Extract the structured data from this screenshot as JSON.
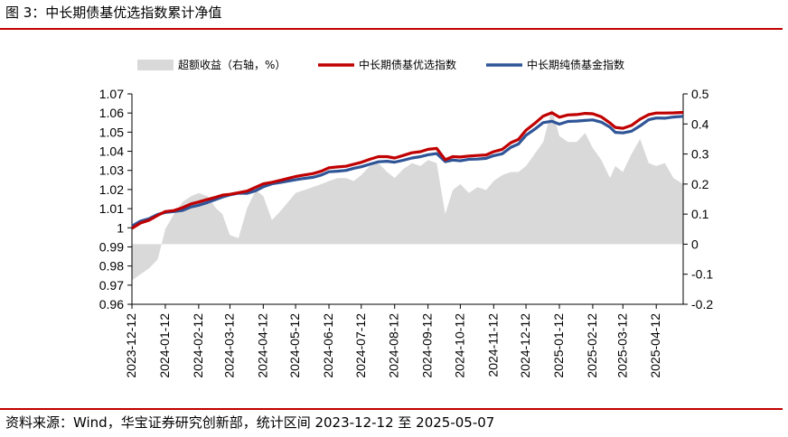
{
  "header": {
    "title": "图 3：中长期债基优选指数累计净值"
  },
  "footer": {
    "source": "资料来源：Wind，华宝证券研究创新部，统计区间 2023-12-12 至 2025-05-07"
  },
  "colors": {
    "accent_rule": "#c00000",
    "area": "#d9d9d9",
    "series1": "#c00000",
    "series2": "#2f5597",
    "series2_edge": "#5b9bd5"
  },
  "chart_data": {
    "type": "line",
    "title": "",
    "legend": [
      "超额收益（右轴，%）",
      "中长期债基优选指数",
      "中长期纯债基金指数"
    ],
    "legend_position": "top",
    "grid": false,
    "x_tick_labels": [
      "2023-12-12",
      "2024-01-12",
      "2024-02-12",
      "2024-03-12",
      "2024-04-12",
      "2024-05-12",
      "2024-06-12",
      "2024-07-12",
      "2024-08-12",
      "2024-09-12",
      "2024-10-12",
      "2024-11-12",
      "2024-12-12",
      "2025-01-12",
      "2025-02-12",
      "2025-03-12",
      "2025-04-12"
    ],
    "x_range": [
      "2023-12-12",
      "2025-05-07"
    ],
    "ylim_left": [
      0.96,
      1.07
    ],
    "yticks_left": [
      "0.96",
      "0.97",
      "0.98",
      "0.99",
      "1",
      "1.01",
      "1.02",
      "1.03",
      "1.04",
      "1.05",
      "1.06",
      "1.07"
    ],
    "ylim_right": [
      -0.2,
      0.5
    ],
    "yticks_right": [
      "-0.2",
      "-0.1",
      "0",
      "0.1",
      "0.2",
      "0.3",
      "0.4",
      "0.5"
    ],
    "x": [
      "2023-12-12",
      "2023-12-20",
      "2023-12-28",
      "2024-01-05",
      "2024-01-12",
      "2024-01-20",
      "2024-01-28",
      "2024-02-05",
      "2024-02-12",
      "2024-02-20",
      "2024-02-28",
      "2024-03-05",
      "2024-03-12",
      "2024-03-20",
      "2024-03-28",
      "2024-04-05",
      "2024-04-12",
      "2024-04-20",
      "2024-04-28",
      "2024-05-05",
      "2024-05-12",
      "2024-05-20",
      "2024-05-28",
      "2024-06-05",
      "2024-06-12",
      "2024-06-20",
      "2024-06-28",
      "2024-07-05",
      "2024-07-12",
      "2024-07-20",
      "2024-07-28",
      "2024-08-05",
      "2024-08-12",
      "2024-08-20",
      "2024-08-28",
      "2024-09-05",
      "2024-09-12",
      "2024-09-20",
      "2024-09-28",
      "2024-10-05",
      "2024-10-12",
      "2024-10-20",
      "2024-10-28",
      "2024-11-05",
      "2024-11-12",
      "2024-11-20",
      "2024-11-28",
      "2024-12-05",
      "2024-12-12",
      "2024-12-20",
      "2024-12-28",
      "2025-01-05",
      "2025-01-12",
      "2025-01-20",
      "2025-01-28",
      "2025-02-05",
      "2025-02-12",
      "2025-02-20",
      "2025-02-28",
      "2025-03-05",
      "2025-03-12",
      "2025-03-20",
      "2025-03-28",
      "2025-04-05",
      "2025-04-12",
      "2025-04-20",
      "2025-04-28",
      "2025-05-07"
    ],
    "series": [
      {
        "name": "超额收益（右轴，%）",
        "type": "area",
        "axis": "right",
        "values": [
          -0.12,
          -0.1,
          -0.08,
          -0.05,
          0.05,
          0.1,
          0.14,
          0.16,
          0.17,
          0.16,
          0.12,
          0.1,
          0.03,
          0.02,
          0.12,
          0.18,
          0.16,
          0.08,
          0.11,
          0.14,
          0.17,
          0.18,
          0.19,
          0.2,
          0.21,
          0.22,
          0.22,
          0.21,
          0.23,
          0.26,
          0.27,
          0.24,
          0.22,
          0.25,
          0.27,
          0.26,
          0.28,
          0.27,
          0.1,
          0.18,
          0.2,
          0.17,
          0.19,
          0.18,
          0.21,
          0.23,
          0.24,
          0.24,
          0.26,
          0.3,
          0.34,
          0.45,
          0.36,
          0.34,
          0.34,
          0.37,
          0.32,
          0.28,
          0.22,
          0.26,
          0.24,
          0.3,
          0.35,
          0.27,
          0.26,
          0.27,
          0.22,
          0.2
        ]
      },
      {
        "name": "中长期债基优选指数",
        "type": "line",
        "axis": "left",
        "values": [
          0.9997,
          1.0025,
          1.004,
          1.0065,
          1.0085,
          1.009,
          1.0105,
          1.0125,
          1.0135,
          1.0148,
          1.016,
          1.0171,
          1.0175,
          1.0183,
          1.0192,
          1.0212,
          1.023,
          1.0238,
          1.0248,
          1.0258,
          1.0268,
          1.0276,
          1.0283,
          1.0296,
          1.0314,
          1.0318,
          1.0322,
          1.0332,
          1.0342,
          1.0358,
          1.0372,
          1.0372,
          1.0365,
          1.0378,
          1.0392,
          1.0398,
          1.041,
          1.0415,
          1.0356,
          1.0372,
          1.037,
          1.0375,
          1.0378,
          1.0381,
          1.0398,
          1.041,
          1.0445,
          1.0462,
          1.051,
          1.0545,
          1.0584,
          1.0602,
          1.0578,
          1.059,
          1.0592,
          1.0598,
          1.0596,
          1.058,
          1.0548,
          1.0525,
          1.052,
          1.0535,
          1.0568,
          1.0592,
          1.06,
          1.06,
          1.0601,
          1.0603
        ]
      },
      {
        "name": "中长期纯债基金指数",
        "type": "line",
        "axis": "left",
        "values": [
          1.0009,
          1.0035,
          1.0048,
          1.007,
          1.008,
          1.0085,
          1.0091,
          1.0109,
          1.0118,
          1.0132,
          1.0148,
          1.0161,
          1.0172,
          1.0181,
          1.018,
          1.0194,
          1.0214,
          1.023,
          1.0237,
          1.0244,
          1.0251,
          1.0258,
          1.0264,
          1.0276,
          1.0293,
          1.0296,
          1.03,
          1.0311,
          1.0319,
          1.0332,
          1.0345,
          1.0348,
          1.0343,
          1.0353,
          1.0365,
          1.0372,
          1.0382,
          1.0388,
          1.0346,
          1.0354,
          1.035,
          1.0358,
          1.0359,
          1.0363,
          1.0377,
          1.0387,
          1.0421,
          1.0438,
          1.0484,
          1.0515,
          1.055,
          1.0557,
          1.0542,
          1.0556,
          1.0558,
          1.0561,
          1.0564,
          1.0552,
          1.0526,
          1.0499,
          1.0496,
          1.0505,
          1.0533,
          1.0565,
          1.0574,
          1.0573,
          1.0579,
          1.0583
        ]
      }
    ]
  }
}
